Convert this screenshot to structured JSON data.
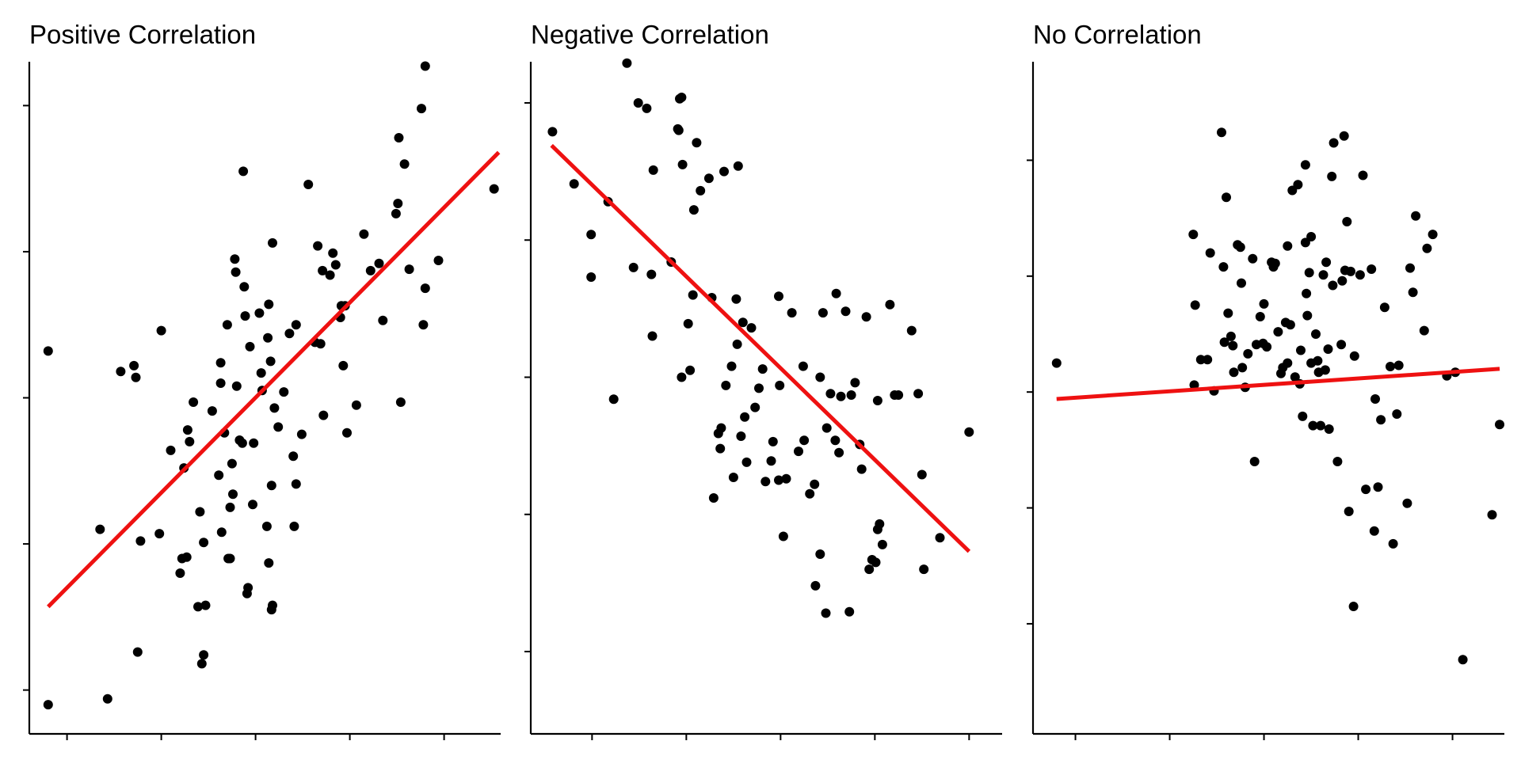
{
  "colors": {
    "point": "#000000",
    "trend": "#ee1111",
    "axis": "#000000"
  },
  "chart_data": [
    {
      "type": "scatter",
      "title": "Positive Correlation",
      "xlabel": "",
      "ylabel": "",
      "xlim": [
        -2.4,
        2.6
      ],
      "ylim": [
        -2.3,
        2.3
      ],
      "xticks": [
        -2,
        -1,
        0,
        1,
        2
      ],
      "yticks": [
        -2,
        -1,
        0,
        1,
        2
      ],
      "xtick_labels_shown": false,
      "ytick_labels_shown": false,
      "grid": false,
      "legend": "none",
      "trend_line": {
        "x": [
          -2.2,
          2.58
        ],
        "y": [
          -1.43,
          1.68
        ]
      },
      "points": [
        [
          -2.2,
          -2.1
        ],
        [
          -2.2,
          0.32
        ],
        [
          -1.65,
          -0.9
        ],
        [
          -1.57,
          -2.06
        ],
        [
          -1.43,
          0.18
        ],
        [
          -1.29,
          0.22
        ],
        [
          -1.27,
          0.14
        ],
        [
          -1.25,
          -1.74
        ],
        [
          -1.22,
          -0.98
        ],
        [
          -1.02,
          -0.93
        ],
        [
          -1.0,
          0.46
        ],
        [
          -0.9,
          -0.36
        ],
        [
          -0.8,
          -1.2
        ],
        [
          -0.78,
          -1.1
        ],
        [
          -0.76,
          -0.48
        ],
        [
          -0.73,
          -1.09
        ],
        [
          -0.72,
          -0.22
        ],
        [
          -0.7,
          -0.3
        ],
        [
          -0.66,
          -0.03
        ],
        [
          -0.61,
          -1.43
        ],
        [
          -0.59,
          -0.78
        ],
        [
          -0.57,
          -1.82
        ],
        [
          -0.55,
          -1.76
        ],
        [
          -0.55,
          -0.99
        ],
        [
          -0.53,
          -1.42
        ],
        [
          -0.46,
          -0.09
        ],
        [
          -0.39,
          -0.53
        ],
        [
          -0.37,
          0.24
        ],
        [
          -0.37,
          0.1
        ],
        [
          -0.36,
          -0.92
        ],
        [
          -0.33,
          -0.24
        ],
        [
          -0.3,
          0.5
        ],
        [
          -0.29,
          -1.1
        ],
        [
          -0.27,
          -0.75
        ],
        [
          -0.27,
          -1.1
        ],
        [
          -0.25,
          -0.45
        ],
        [
          -0.24,
          -0.66
        ],
        [
          -0.22,
          0.95
        ],
        [
          -0.21,
          0.86
        ],
        [
          -0.2,
          0.08
        ],
        [
          -0.17,
          -0.29
        ],
        [
          -0.14,
          -0.31
        ],
        [
          -0.13,
          1.55
        ],
        [
          -0.12,
          0.76
        ],
        [
          -0.11,
          0.56
        ],
        [
          -0.09,
          -1.34
        ],
        [
          -0.08,
          -1.3
        ],
        [
          -0.06,
          0.35
        ],
        [
          -0.03,
          -0.73
        ],
        [
          -0.02,
          -0.31
        ],
        [
          0.04,
          0.58
        ],
        [
          0.06,
          0.17
        ],
        [
          0.07,
          0.05
        ],
        [
          0.12,
          -0.88
        ],
        [
          0.13,
          0.41
        ],
        [
          0.14,
          -1.13
        ],
        [
          0.14,
          0.64
        ],
        [
          0.16,
          0.25
        ],
        [
          0.17,
          -0.6
        ],
        [
          0.17,
          -1.45
        ],
        [
          0.18,
          -1.42
        ],
        [
          0.18,
          1.06
        ],
        [
          0.2,
          -0.07
        ],
        [
          0.24,
          -0.2
        ],
        [
          0.3,
          0.04
        ],
        [
          0.36,
          0.44
        ],
        [
          0.4,
          -0.4
        ],
        [
          0.41,
          -0.88
        ],
        [
          0.43,
          0.5
        ],
        [
          0.43,
          -0.59
        ],
        [
          0.49,
          -0.25
        ],
        [
          0.56,
          1.46
        ],
        [
          0.63,
          0.38
        ],
        [
          0.66,
          1.04
        ],
        [
          0.69,
          0.37
        ],
        [
          0.71,
          0.87
        ],
        [
          0.72,
          -0.12
        ],
        [
          0.79,
          0.84
        ],
        [
          0.82,
          0.99
        ],
        [
          0.85,
          0.91
        ],
        [
          0.9,
          0.55
        ],
        [
          0.91,
          0.63
        ],
        [
          0.93,
          0.22
        ],
        [
          0.95,
          0.63
        ],
        [
          0.97,
          -0.24
        ],
        [
          1.07,
          -0.05
        ],
        [
          1.15,
          1.12
        ],
        [
          1.22,
          0.87
        ],
        [
          1.31,
          0.92
        ],
        [
          1.35,
          0.53
        ],
        [
          1.49,
          1.26
        ],
        [
          1.51,
          1.33
        ],
        [
          1.52,
          1.78
        ],
        [
          1.54,
          -0.03
        ],
        [
          1.58,
          1.6
        ],
        [
          1.63,
          0.88
        ],
        [
          1.76,
          1.98
        ],
        [
          1.78,
          0.5
        ],
        [
          1.8,
          2.27
        ],
        [
          1.8,
          0.75
        ],
        [
          1.94,
          0.94
        ],
        [
          2.53,
          1.43
        ]
      ]
    },
    {
      "type": "scatter",
      "title": "Negative Correlation",
      "xlabel": "",
      "ylabel": "",
      "xlim": [
        -2.65,
        2.35
      ],
      "ylim": [
        -2.6,
        2.3
      ],
      "xticks": [
        -2,
        -1,
        0,
        1,
        2
      ],
      "yticks": [
        -2,
        -1,
        0,
        1,
        2
      ],
      "xtick_labels_shown": false,
      "ytick_labels_shown": false,
      "grid": false,
      "legend": "none",
      "trend_line": {
        "x": [
          -2.43,
          2.0
        ],
        "y": [
          1.69,
          -1.27
        ]
      },
      "points": [
        [
          -2.42,
          1.79
        ],
        [
          -2.19,
          1.41
        ],
        [
          -2.01,
          1.04
        ],
        [
          -2.01,
          0.73
        ],
        [
          -1.83,
          1.28
        ],
        [
          -1.77,
          -0.16
        ],
        [
          -1.63,
          2.29
        ],
        [
          -1.56,
          0.8
        ],
        [
          -1.51,
          2.0
        ],
        [
          -1.42,
          1.96
        ],
        [
          -1.35,
          1.51
        ],
        [
          -1.36,
          0.3
        ],
        [
          -1.37,
          0.75
        ],
        [
          -1.16,
          0.84
        ],
        [
          -1.09,
          1.81
        ],
        [
          -1.08,
          1.8
        ],
        [
          -1.07,
          2.03
        ],
        [
          -1.05,
          2.04
        ],
        [
          -1.04,
          1.55
        ],
        [
          -1.05,
          0.0
        ],
        [
          -0.98,
          0.39
        ],
        [
          -0.96,
          0.05
        ],
        [
          -0.93,
          0.6
        ],
        [
          -0.92,
          1.22
        ],
        [
          -0.89,
          1.71
        ],
        [
          -0.85,
          1.36
        ],
        [
          -0.76,
          1.45
        ],
        [
          -0.73,
          0.58
        ],
        [
          -0.71,
          -0.88
        ],
        [
          -0.66,
          -0.41
        ],
        [
          -0.64,
          -0.52
        ],
        [
          -0.63,
          -0.37
        ],
        [
          -0.6,
          1.5
        ],
        [
          -0.58,
          -0.06
        ],
        [
          -0.52,
          0.08
        ],
        [
          -0.5,
          -0.73
        ],
        [
          -0.47,
          0.57
        ],
        [
          -0.46,
          0.24
        ],
        [
          -0.45,
          1.54
        ],
        [
          -0.42,
          -0.43
        ],
        [
          -0.4,
          0.4
        ],
        [
          -0.38,
          -0.29
        ],
        [
          -0.36,
          -0.62
        ],
        [
          -0.31,
          0.36
        ],
        [
          -0.27,
          -0.22
        ],
        [
          -0.23,
          -0.08
        ],
        [
          -0.19,
          0.06
        ],
        [
          -0.16,
          -0.76
        ],
        [
          -0.1,
          -0.61
        ],
        [
          -0.08,
          -0.47
        ],
        [
          -0.02,
          0.59
        ],
        [
          -0.01,
          -0.06
        ],
        [
          -0.02,
          -0.75
        ],
        [
          0.03,
          -1.16
        ],
        [
          0.06,
          -0.74
        ],
        [
          0.12,
          0.47
        ],
        [
          0.19,
          -0.54
        ],
        [
          0.24,
          0.08
        ],
        [
          0.25,
          -0.46
        ],
        [
          0.31,
          -0.85
        ],
        [
          0.36,
          -0.78
        ],
        [
          0.37,
          -1.52
        ],
        [
          0.42,
          0.0
        ],
        [
          0.42,
          -1.29
        ],
        [
          0.45,
          0.47
        ],
        [
          0.48,
          -1.72
        ],
        [
          0.49,
          -0.37
        ],
        [
          0.53,
          -0.12
        ],
        [
          0.58,
          -0.46
        ],
        [
          0.59,
          0.61
        ],
        [
          0.62,
          -0.55
        ],
        [
          0.64,
          -0.14
        ],
        [
          0.69,
          0.48
        ],
        [
          0.73,
          -1.71
        ],
        [
          0.75,
          -0.13
        ],
        [
          0.79,
          -0.04
        ],
        [
          0.84,
          -0.49
        ],
        [
          0.86,
          -0.67
        ],
        [
          0.91,
          0.44
        ],
        [
          0.94,
          -1.4
        ],
        [
          0.97,
          -1.33
        ],
        [
          1.01,
          -1.35
        ],
        [
          1.03,
          -0.17
        ],
        [
          1.03,
          -1.11
        ],
        [
          1.05,
          -1.07
        ],
        [
          1.08,
          -1.22
        ],
        [
          1.16,
          0.53
        ],
        [
          1.21,
          -0.13
        ],
        [
          1.25,
          -0.13
        ],
        [
          1.39,
          0.34
        ],
        [
          1.46,
          -0.12
        ],
        [
          1.5,
          -0.71
        ],
        [
          1.52,
          -1.4
        ],
        [
          1.69,
          -1.17
        ],
        [
          2.0,
          -0.4
        ]
      ]
    },
    {
      "type": "scatter",
      "title": "No Correlation",
      "xlabel": "",
      "ylabel": "",
      "xlim": [
        -2.45,
        2.55
      ],
      "ylim": [
        -2.95,
        2.85
      ],
      "xticks": [
        -2,
        -1,
        0,
        1,
        2
      ],
      "yticks": [
        -2,
        -1,
        0,
        1,
        2
      ],
      "xtick_labels_shown": false,
      "ytick_labels_shown": false,
      "grid": false,
      "legend": "none",
      "trend_line": {
        "x": [
          -2.2,
          2.5
        ],
        "y": [
          -0.06,
          0.2
        ]
      },
      "points": [
        [
          -2.2,
          0.25
        ],
        [
          -0.75,
          1.36
        ],
        [
          -0.74,
          0.06
        ],
        [
          -0.73,
          0.75
        ],
        [
          -0.67,
          0.28
        ],
        [
          -0.6,
          0.28
        ],
        [
          -0.57,
          1.2
        ],
        [
          -0.53,
          0.01
        ],
        [
          -0.45,
          2.24
        ],
        [
          -0.43,
          1.08
        ],
        [
          -0.42,
          0.43
        ],
        [
          -0.4,
          1.68
        ],
        [
          -0.38,
          0.68
        ],
        [
          -0.35,
          0.48
        ],
        [
          -0.33,
          0.4
        ],
        [
          -0.32,
          0.17
        ],
        [
          -0.28,
          1.27
        ],
        [
          -0.25,
          1.25
        ],
        [
          -0.24,
          0.94
        ],
        [
          -0.23,
          0.21
        ],
        [
          -0.2,
          0.04
        ],
        [
          -0.17,
          0.33
        ],
        [
          -0.12,
          1.15
        ],
        [
          -0.1,
          -0.6
        ],
        [
          -0.08,
          0.41
        ],
        [
          -0.04,
          0.65
        ],
        [
          -0.01,
          0.42
        ],
        [
          0.0,
          0.76
        ],
        [
          0.03,
          0.39
        ],
        [
          0.08,
          1.12
        ],
        [
          0.1,
          1.08
        ],
        [
          0.12,
          1.11
        ],
        [
          0.15,
          0.52
        ],
        [
          0.18,
          0.16
        ],
        [
          0.2,
          0.21
        ],
        [
          0.23,
          0.6
        ],
        [
          0.25,
          1.26
        ],
        [
          0.25,
          0.25
        ],
        [
          0.28,
          0.58
        ],
        [
          0.3,
          1.74
        ],
        [
          0.33,
          0.13
        ],
        [
          0.36,
          1.79
        ],
        [
          0.38,
          0.07
        ],
        [
          0.39,
          0.36
        ],
        [
          0.41,
          -0.21
        ],
        [
          0.44,
          1.29
        ],
        [
          0.44,
          1.96
        ],
        [
          0.45,
          0.85
        ],
        [
          0.46,
          0.66
        ],
        [
          0.48,
          1.03
        ],
        [
          0.5,
          1.34
        ],
        [
          0.5,
          0.25
        ],
        [
          0.52,
          -0.29
        ],
        [
          0.55,
          0.5
        ],
        [
          0.57,
          0.27
        ],
        [
          0.58,
          0.17
        ],
        [
          0.6,
          -0.29
        ],
        [
          0.63,
          1.01
        ],
        [
          0.65,
          0.19
        ],
        [
          0.66,
          1.12
        ],
        [
          0.68,
          0.37
        ],
        [
          0.69,
          -0.32
        ],
        [
          0.72,
          1.86
        ],
        [
          0.73,
          0.92
        ],
        [
          0.74,
          2.15
        ],
        [
          0.78,
          -0.6
        ],
        [
          0.82,
          0.41
        ],
        [
          0.83,
          0.96
        ],
        [
          0.85,
          2.21
        ],
        [
          0.86,
          1.05
        ],
        [
          0.88,
          1.47
        ],
        [
          0.9,
          -1.03
        ],
        [
          0.92,
          1.04
        ],
        [
          0.95,
          -1.85
        ],
        [
          0.96,
          0.31
        ],
        [
          1.02,
          1.01
        ],
        [
          1.05,
          1.87
        ],
        [
          1.08,
          -0.84
        ],
        [
          1.14,
          1.06
        ],
        [
          1.17,
          -1.2
        ],
        [
          1.18,
          -0.06
        ],
        [
          1.21,
          -0.82
        ],
        [
          1.24,
          -0.24
        ],
        [
          1.28,
          0.73
        ],
        [
          1.34,
          0.22
        ],
        [
          1.37,
          -1.31
        ],
        [
          1.41,
          -0.19
        ],
        [
          1.43,
          0.23
        ],
        [
          1.52,
          -0.96
        ],
        [
          1.55,
          1.07
        ],
        [
          1.58,
          0.86
        ],
        [
          1.61,
          1.52
        ],
        [
          1.7,
          0.53
        ],
        [
          1.73,
          1.24
        ],
        [
          1.79,
          1.36
        ],
        [
          1.94,
          0.14
        ],
        [
          2.03,
          0.17
        ],
        [
          2.11,
          -2.31
        ],
        [
          2.42,
          -1.06
        ],
        [
          2.5,
          -0.28
        ]
      ]
    }
  ]
}
